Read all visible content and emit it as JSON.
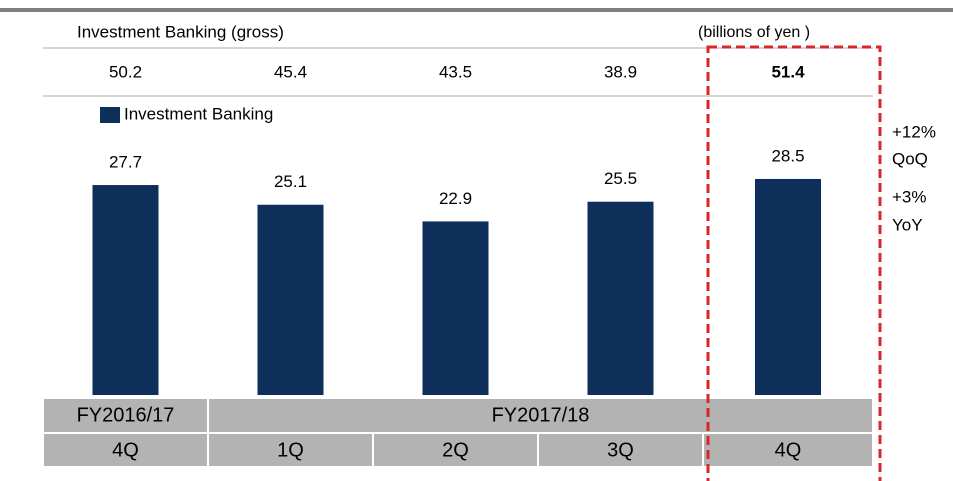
{
  "chart_data": {
    "type": "bar",
    "title": "Investment Banking (gross)",
    "unit_note": "(billions of yen )",
    "gross_values": [
      50.2,
      45.4,
      43.5,
      38.9,
      51.4
    ],
    "categories": [
      "4Q",
      "1Q",
      "2Q",
      "3Q",
      "4Q"
    ],
    "groups": [
      {
        "label": "FY2016/17",
        "span": 1
      },
      {
        "label": "FY2017/18",
        "span": 4
      }
    ],
    "series": [
      {
        "name": "Investment Banking",
        "color": "#0d2f5a",
        "values": [
          27.7,
          25.1,
          22.9,
          25.5,
          28.5
        ]
      }
    ],
    "annotations": [
      "+12%",
      "QoQ",
      "+3%",
      "YoY"
    ]
  }
}
